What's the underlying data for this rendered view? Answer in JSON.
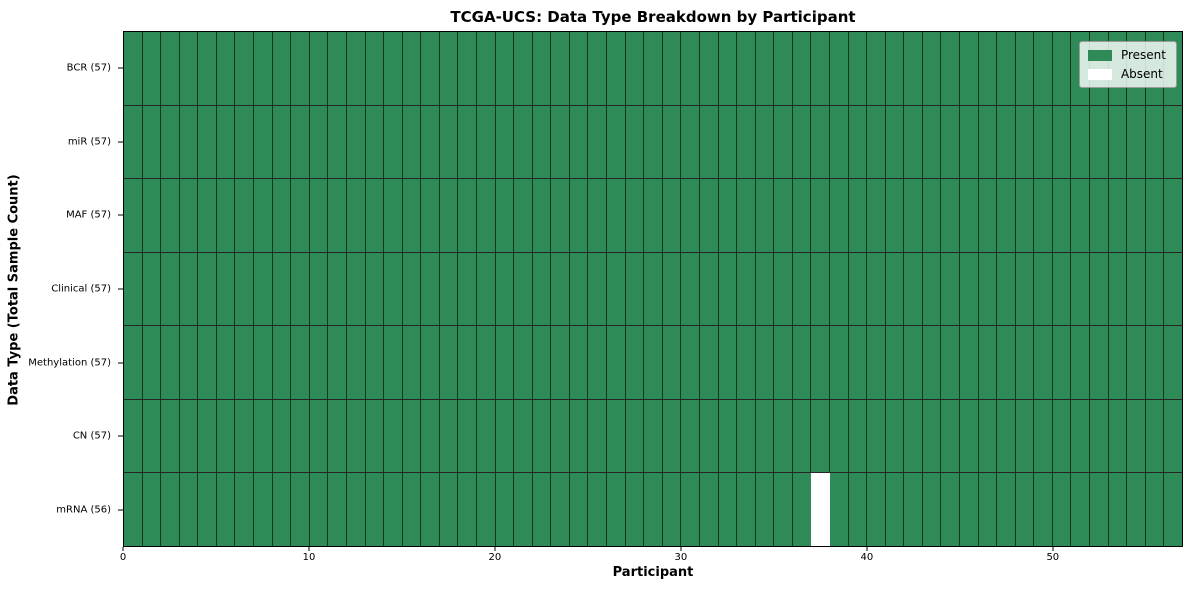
{
  "chart_data": {
    "type": "heatmap",
    "title": "TCGA-UCS: Data Type Breakdown by Participant",
    "xlabel": "Participant",
    "ylabel": "Data Type (Total Sample Count)",
    "n_participants": 57,
    "x_range": [
      0,
      57
    ],
    "x_ticks": [
      0,
      10,
      20,
      30,
      40,
      50
    ],
    "rows": [
      {
        "label": "BCR (57)",
        "total": 57,
        "absent_participants": []
      },
      {
        "label": "miR (57)",
        "total": 57,
        "absent_participants": []
      },
      {
        "label": "MAF (57)",
        "total": 57,
        "absent_participants": []
      },
      {
        "label": "Clinical (57)",
        "total": 57,
        "absent_participants": []
      },
      {
        "label": "Methylation (57)",
        "total": 57,
        "absent_participants": []
      },
      {
        "label": "CN (57)",
        "total": 57,
        "absent_participants": []
      },
      {
        "label": "mRNA (56)",
        "total": 56,
        "absent_participants": [
          37
        ]
      }
    ],
    "legend": {
      "position": "upper-right",
      "items": [
        {
          "label": "Present",
          "color": "#2E8B57"
        },
        {
          "label": "Absent",
          "color": "#FFFFFF"
        }
      ]
    },
    "colors": {
      "present": "#2E8B57",
      "absent": "#FFFFFF",
      "cell_edge": "#000000",
      "background": "#FFFFFF"
    }
  }
}
